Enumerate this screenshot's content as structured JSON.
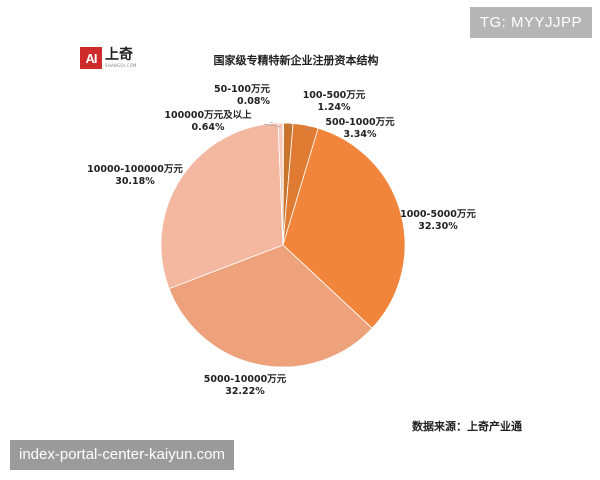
{
  "watermark_top": "TG: MYYJJPP",
  "watermark_bottom": "index-portal-center-kaiyun.com",
  "logo": {
    "mark": "AI",
    "name": "上奇",
    "subtext": "SHANGQI.COM"
  },
  "source_label": "数据来源：上奇产业通",
  "chart_data": {
    "type": "pie",
    "title": "国家级专精特新企业注册资本结构",
    "slices": [
      {
        "label": "50-100万元",
        "value": 0.08,
        "value_label": "0.08%",
        "color": "#d9822b"
      },
      {
        "label": "100-500万元",
        "value": 1.24,
        "value_label": "1.24%",
        "color": "#c9742a"
      },
      {
        "label": "500-1000万元",
        "value": 3.34,
        "value_label": "3.34%",
        "color": "#e07b34"
      },
      {
        "label": "1000-5000万元",
        "value": 32.3,
        "value_label": "32.30%",
        "color": "#f0853b"
      },
      {
        "label": "5000-10000万元",
        "value": 32.22,
        "value_label": "32.22%",
        "color": "#eda27c"
      },
      {
        "label": "10000-100000万元",
        "value": 30.18,
        "value_label": "30.18%",
        "color": "#f4b8a1"
      },
      {
        "label": "100000万元及以上",
        "value": 0.64,
        "value_label": "0.64%",
        "color": "#f6c9b8"
      }
    ],
    "legend": "none",
    "labels": "outside with leader lines"
  }
}
